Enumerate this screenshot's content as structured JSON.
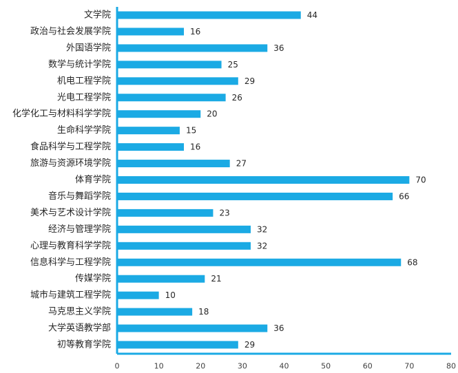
{
  "chart_data": {
    "type": "bar",
    "orientation": "horizontal",
    "categories": [
      "文学院",
      "政治与社会发展学院",
      "外国语学院",
      "数学与统计学院",
      "机电工程学院",
      "光电工程学院",
      "化学化工与材料科学学院",
      "生命科学学院",
      "食品科学与工程学院",
      "旅游与资源环境学院",
      "体育学院",
      "音乐与舞蹈学院",
      "美术与艺术设计学院",
      "经济与管理学院",
      "心理与教育科学学院",
      "信息科学与工程学院",
      "传媒学院",
      "城市与建筑工程学院",
      "马克思主义学院",
      "大学英语教学部",
      "初等教育学院"
    ],
    "values": [
      44,
      16,
      36,
      25,
      29,
      26,
      20,
      15,
      16,
      27,
      70,
      66,
      23,
      32,
      32,
      68,
      21,
      10,
      18,
      36,
      29
    ],
    "xlim": [
      0,
      80
    ],
    "xticks": [
      "0",
      "10",
      "20",
      "30",
      "40",
      "50",
      "60",
      "70",
      "80"
    ],
    "title": "",
    "xlabel": "",
    "ylabel": "",
    "grid": false,
    "bar_color": "#1BAAE4",
    "axis_color": "#1BAAE4"
  }
}
